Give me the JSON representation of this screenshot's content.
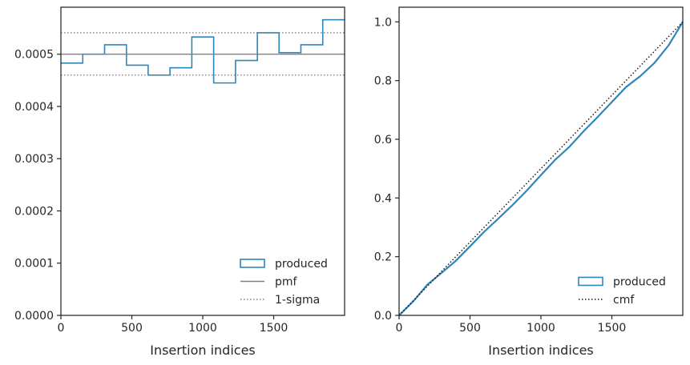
{
  "colors": {
    "produced": "#2e86b9",
    "pmf": "#808080",
    "sigma": "#808080",
    "cmf": "#1a1a1a",
    "axis": "#262626"
  },
  "chart_data": [
    {
      "type": "step",
      "xlabel": "Insertion indices",
      "ylabel": "",
      "title": "",
      "xlim": [
        0,
        2000
      ],
      "ylim": [
        0,
        0.00059
      ],
      "xticks": [
        0,
        500,
        1000,
        1500
      ],
      "xtick_labels": [
        "0",
        "500",
        "1000",
        "1500"
      ],
      "yticks": [
        0,
        0.0001,
        0.0002,
        0.0003,
        0.0004,
        0.0005
      ],
      "ytick_labels": [
        "0.0000",
        "0.0001",
        "0.0002",
        "0.0003",
        "0.0004",
        "0.0005"
      ],
      "bin_edges": [
        0,
        154,
        308,
        462,
        615,
        769,
        923,
        1077,
        1231,
        1385,
        1538,
        1692,
        1846,
        2000
      ],
      "series": [
        {
          "name": "produced",
          "style": "step",
          "values": [
            0.000483,
            0.0005,
            0.000518,
            0.000479,
            0.00046,
            0.000474,
            0.000533,
            0.000445,
            0.000488,
            0.000541,
            0.000503,
            0.000518,
            0.000566
          ]
        },
        {
          "name": "pmf",
          "style": "hline",
          "y": 0.0005
        },
        {
          "name": "1-sigma",
          "style": "hline-dotted",
          "y": [
            0.00046,
            0.000541
          ]
        }
      ],
      "legend": [
        "produced",
        "pmf",
        "1-sigma"
      ],
      "legend_position": "lower-right"
    },
    {
      "type": "line",
      "xlabel": "Insertion indices",
      "ylabel": "",
      "title": "",
      "xlim": [
        0,
        2000
      ],
      "ylim": [
        0,
        1.05
      ],
      "xticks": [
        0,
        500,
        1000,
        1500
      ],
      "xtick_labels": [
        "0",
        "500",
        "1000",
        "1500"
      ],
      "yticks": [
        0,
        0.2,
        0.4,
        0.6,
        0.8,
        1.0
      ],
      "ytick_labels": [
        "0.0",
        "0.2",
        "0.4",
        "0.6",
        "0.8",
        "1.0"
      ],
      "series": [
        {
          "name": "produced",
          "style": "line",
          "x": [
            0,
            100,
            200,
            300,
            400,
            500,
            600,
            700,
            800,
            900,
            1000,
            1100,
            1200,
            1300,
            1400,
            1500,
            1600,
            1700,
            1800,
            1900,
            2000
          ],
          "y": [
            0.0,
            0.048,
            0.105,
            0.145,
            0.186,
            0.235,
            0.285,
            0.33,
            0.376,
            0.425,
            0.478,
            0.53,
            0.574,
            0.627,
            0.676,
            0.727,
            0.778,
            0.815,
            0.86,
            0.92,
            1.0
          ]
        },
        {
          "name": "cmf",
          "style": "dotted",
          "x": [
            0,
            2000
          ],
          "y": [
            0,
            1.0
          ]
        }
      ],
      "legend": [
        "produced",
        "cmf"
      ],
      "legend_position": "lower-right"
    }
  ]
}
